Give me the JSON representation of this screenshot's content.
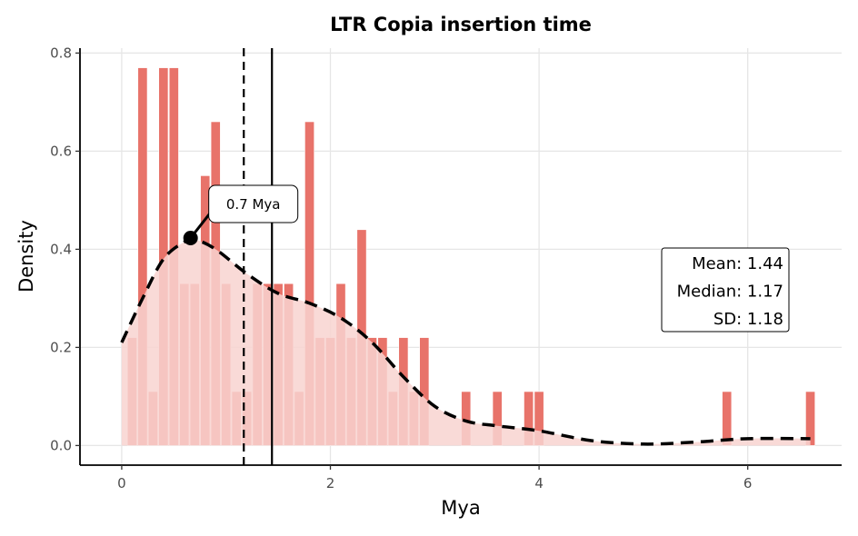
{
  "chart_data": {
    "type": "bar",
    "title": "LTR Copia insertion time",
    "xlabel": "Mya",
    "ylabel": "Density",
    "xlim": [
      -0.4,
      6.9
    ],
    "ylim": [
      -0.04,
      0.81
    ],
    "x_ticks": [
      0,
      2,
      4,
      6
    ],
    "y_ticks": [
      "0.0",
      "0.2",
      "0.4",
      "0.6",
      "0.8"
    ],
    "grid": true,
    "bar_color": "#e8736a",
    "density_fill_color": "#f8d3d0",
    "bin_width": 0.1,
    "histogram": {
      "x": [
        0.1,
        0.2,
        0.3,
        0.4,
        0.5,
        0.6,
        0.7,
        0.8,
        0.9,
        1.0,
        1.1,
        1.2,
        1.3,
        1.4,
        1.5,
        1.6,
        1.7,
        1.8,
        1.9,
        2.0,
        2.1,
        2.2,
        2.3,
        2.4,
        2.5,
        2.6,
        2.7,
        2.8,
        2.9,
        3.3,
        3.6,
        3.9,
        4.0,
        5.8,
        6.6
      ],
      "density": [
        0.22,
        0.77,
        0.11,
        0.77,
        0.77,
        0.33,
        0.33,
        0.55,
        0.66,
        0.33,
        0.11,
        0.11,
        0.33,
        0.33,
        0.33,
        0.33,
        0.11,
        0.66,
        0.22,
        0.22,
        0.33,
        0.22,
        0.44,
        0.22,
        0.22,
        0.11,
        0.22,
        0.11,
        0.22,
        0.11,
        0.11,
        0.11,
        0.11,
        0.11,
        0.11
      ]
    },
    "density_curve": {
      "x": [
        0.0,
        0.2,
        0.4,
        0.6,
        0.7,
        0.9,
        1.2,
        1.5,
        1.8,
        2.1,
        2.4,
        2.7,
        3.0,
        3.3,
        3.6,
        4.0,
        4.5,
        5.0,
        5.5,
        6.0,
        6.6
      ],
      "y": [
        0.21,
        0.3,
        0.38,
        0.415,
        0.42,
        0.4,
        0.35,
        0.31,
        0.29,
        0.26,
        0.21,
        0.14,
        0.08,
        0.05,
        0.04,
        0.03,
        0.01,
        0.003,
        0.007,
        0.014,
        0.014
      ]
    },
    "mean": 1.44,
    "median": 1.17,
    "peak": {
      "x": 0.66,
      "y": 0.423,
      "label": "0.7 Mya"
    },
    "stats_box": [
      "Mean: 1.44",
      "Median: 1.17",
      "SD: 1.18"
    ]
  }
}
